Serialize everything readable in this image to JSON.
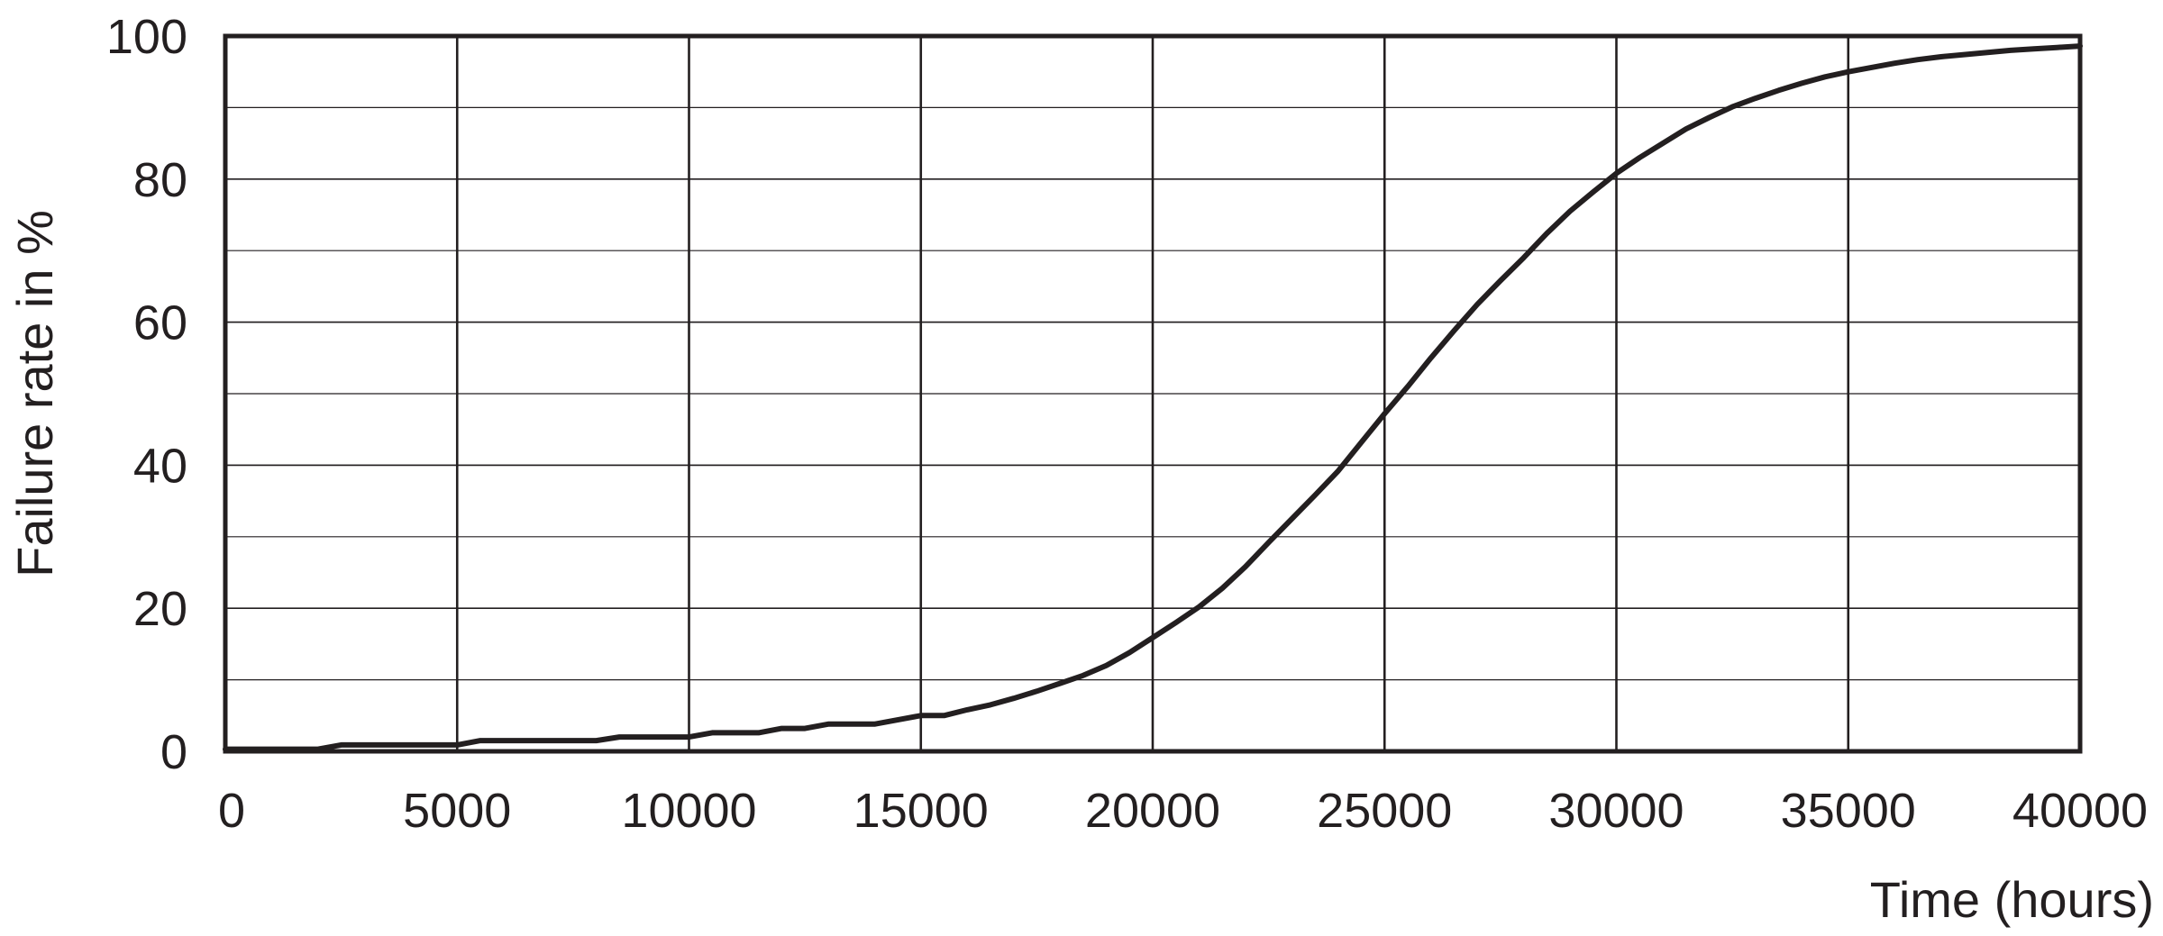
{
  "chart_data": {
    "type": "line",
    "title": "",
    "xlabel": "Time (hours)",
    "ylabel": "Failure rate in %",
    "xlim": [
      0,
      40000
    ],
    "ylim": [
      0,
      100
    ],
    "x_ticks": [
      "0",
      "5000",
      "10000",
      "15000",
      "20000",
      "25000",
      "30000",
      "35000",
      "40000"
    ],
    "y_ticks": [
      "0",
      "20",
      "40",
      "60",
      "80",
      "100"
    ],
    "y_minor_step": 10,
    "grid": true,
    "legend": "none",
    "line_color": "#231f20",
    "series": [
      {
        "x": [
          0,
          1000,
          2000,
          2500,
          3000,
          4000,
          5000,
          5500,
          6000,
          7000,
          8000,
          8500,
          9000,
          9500,
          10000,
          10500,
          11000,
          11500,
          12000,
          12500,
          13000,
          13500,
          14000,
          14500,
          15000,
          15500,
          16000,
          16500,
          17000,
          17500,
          18000,
          18500,
          19000,
          19500,
          20000,
          20500,
          21000,
          21500,
          22000,
          22500,
          23000,
          23500,
          24000,
          24500,
          25000,
          25500,
          26000,
          26500,
          27000,
          27500,
          28000,
          28500,
          29000,
          29500,
          30000,
          30500,
          31000,
          31500,
          32000,
          32500,
          33000,
          33500,
          34000,
          34500,
          35000,
          35500,
          36000,
          36500,
          37000,
          37500,
          38000,
          38500,
          39000,
          39500,
          40000
        ],
        "y": [
          0.3,
          0.3,
          0.3,
          0.9,
          0.9,
          0.9,
          0.9,
          1.5,
          1.5,
          1.5,
          1.5,
          2.0,
          2.0,
          2.0,
          2.0,
          2.6,
          2.6,
          2.6,
          3.2,
          3.2,
          3.8,
          3.8,
          3.8,
          4.4,
          5.0,
          5.0,
          5.8,
          6.5,
          7.4,
          8.4,
          9.5,
          10.6,
          12.0,
          13.8,
          15.9,
          18.0,
          20.2,
          22.8,
          25.8,
          29.2,
          32.5,
          35.8,
          39.2,
          43.2,
          47.2,
          51.0,
          55.0,
          58.8,
          62.5,
          65.8,
          69.0,
          72.4,
          75.5,
          78.2,
          80.8,
          83.0,
          85.0,
          87.0,
          88.6,
          90.1,
          91.3,
          92.4,
          93.4,
          94.3,
          95.0,
          95.6,
          96.2,
          96.7,
          97.1,
          97.4,
          97.7,
          98.0,
          98.2,
          98.4,
          98.6
        ]
      }
    ]
  }
}
